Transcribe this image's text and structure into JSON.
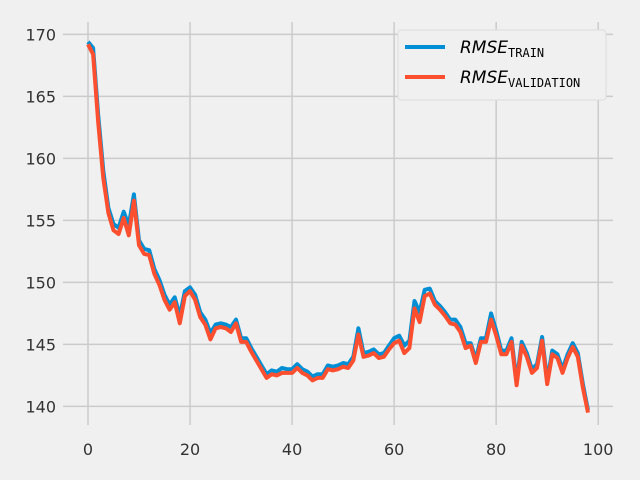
{
  "chart_data": {
    "type": "line",
    "title": "",
    "xlabel": "",
    "ylabel": "",
    "xlim": [
      -4.9,
      102.9
    ],
    "ylim": [
      138.5,
      171.0
    ],
    "xticks": [
      0,
      20,
      40,
      60,
      80,
      100
    ],
    "yticks": [
      140,
      145,
      150,
      155,
      160,
      165,
      170
    ],
    "grid": true,
    "legend_position": "top-right",
    "colors": {
      "train": "#008fd5",
      "validation": "#fc4f30",
      "background": "#f0f0f0",
      "grid": "#cbcbcb"
    },
    "x": [
      0,
      1,
      2,
      3,
      4,
      5,
      6,
      7,
      8,
      9,
      10,
      11,
      12,
      13,
      14,
      15,
      16,
      17,
      18,
      19,
      20,
      21,
      22,
      23,
      24,
      25,
      26,
      27,
      28,
      29,
      30,
      31,
      32,
      33,
      34,
      35,
      36,
      37,
      38,
      39,
      40,
      41,
      42,
      43,
      44,
      45,
      46,
      47,
      48,
      49,
      50,
      51,
      52,
      53,
      54,
      55,
      56,
      57,
      58,
      59,
      60,
      61,
      62,
      63,
      64,
      65,
      66,
      67,
      68,
      69,
      70,
      71,
      72,
      73,
      74,
      75,
      76,
      77,
      78,
      79,
      80,
      81,
      82,
      83,
      84,
      85,
      86,
      87,
      88,
      89,
      90,
      91,
      92,
      93,
      94,
      95,
      96,
      97,
      98
    ],
    "series": [
      {
        "key": "train",
        "legend_main": "RMSE",
        "legend_sub": "TRAIN",
        "values": [
          169.4,
          168.9,
          163.5,
          159.0,
          156.0,
          154.7,
          154.4,
          155.7,
          154.6,
          157.1,
          153.4,
          152.7,
          152.6,
          151.1,
          150.2,
          149.0,
          148.2,
          148.8,
          147.3,
          149.3,
          149.6,
          149.0,
          147.6,
          147.0,
          145.9,
          146.6,
          146.7,
          146.6,
          146.4,
          147.0,
          145.5,
          145.5,
          144.7,
          144.0,
          143.3,
          142.6,
          142.9,
          142.8,
          143.1,
          143.0,
          143.0,
          143.4,
          143.0,
          142.8,
          142.4,
          142.6,
          142.6,
          143.3,
          143.2,
          143.3,
          143.5,
          143.4,
          144.0,
          146.3,
          144.3,
          144.4,
          144.6,
          144.2,
          144.3,
          144.9,
          145.5,
          145.7,
          144.9,
          145.3,
          148.5,
          147.6,
          149.4,
          149.5,
          148.5,
          148.1,
          147.6,
          147.0,
          147.0,
          146.4,
          145.1,
          145.1,
          143.8,
          145.5,
          145.5,
          147.5,
          146.1,
          144.5,
          144.5,
          145.5,
          142.0,
          145.2,
          144.3,
          143.0,
          143.4,
          145.6,
          142.1,
          144.5,
          144.2,
          143.0,
          144.2,
          145.1,
          144.3,
          141.8,
          139.7
        ]
      },
      {
        "key": "validation",
        "legend_main": "RMSE",
        "legend_sub": "VALIDATION",
        "values": [
          169.2,
          168.4,
          162.9,
          158.4,
          155.6,
          154.2,
          153.9,
          155.2,
          153.8,
          156.6,
          153.0,
          152.3,
          152.2,
          150.7,
          149.8,
          148.6,
          147.8,
          148.4,
          146.7,
          148.9,
          149.3,
          148.6,
          147.2,
          146.6,
          145.4,
          146.3,
          146.4,
          146.3,
          146.0,
          146.7,
          145.2,
          145.2,
          144.4,
          143.7,
          143.0,
          142.3,
          142.6,
          142.5,
          142.7,
          142.7,
          142.7,
          143.1,
          142.7,
          142.5,
          142.1,
          142.3,
          142.3,
          143.0,
          142.9,
          143.0,
          143.2,
          143.1,
          143.7,
          145.8,
          144.0,
          144.1,
          144.3,
          143.9,
          144.0,
          144.6,
          145.1,
          145.3,
          144.3,
          144.7,
          147.9,
          146.8,
          148.9,
          149.1,
          148.2,
          147.8,
          147.3,
          146.7,
          146.6,
          146.0,
          144.7,
          144.9,
          143.5,
          145.2,
          145.2,
          147.0,
          145.7,
          144.2,
          144.2,
          145.2,
          141.7,
          144.9,
          144.0,
          142.7,
          143.1,
          145.3,
          141.8,
          144.2,
          143.9,
          142.7,
          143.9,
          144.8,
          144.0,
          141.5,
          139.5
        ]
      }
    ]
  }
}
